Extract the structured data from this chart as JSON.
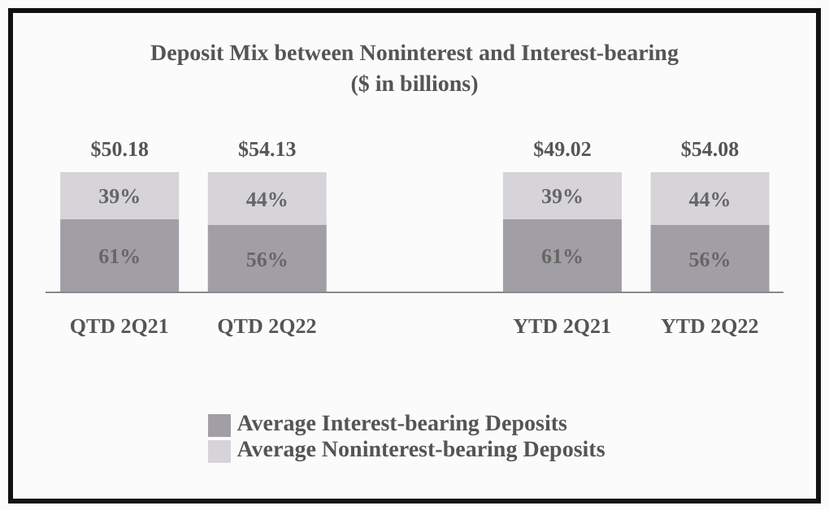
{
  "chart_data": {
    "type": "bar",
    "title": "Deposit Mix between Noninterest and Interest-bearing",
    "subtitle": "($ in billions)",
    "stacked": true,
    "categories": [
      "QTD 2Q21",
      "QTD 2Q22",
      null,
      "YTD 2Q21",
      "YTD 2Q22"
    ],
    "series": [
      {
        "name": "Average Interest-bearing Deposits",
        "color": "#a29ea6",
        "values": [
          61,
          56,
          null,
          61,
          56
        ],
        "value_labels": [
          "61%",
          "56%",
          null,
          "61%",
          "56%"
        ]
      },
      {
        "name": "Average Noninterest-bearing Deposits",
        "color": "#d6d4d8",
        "values": [
          39,
          44,
          null,
          39,
          44
        ],
        "value_labels": [
          "39%",
          "44%",
          null,
          "39%",
          "44%"
        ]
      }
    ],
    "annotations": [
      "$50.18",
      "$54.13",
      "$49.02",
      "$54.08"
    ],
    "legend": "bottom"
  }
}
